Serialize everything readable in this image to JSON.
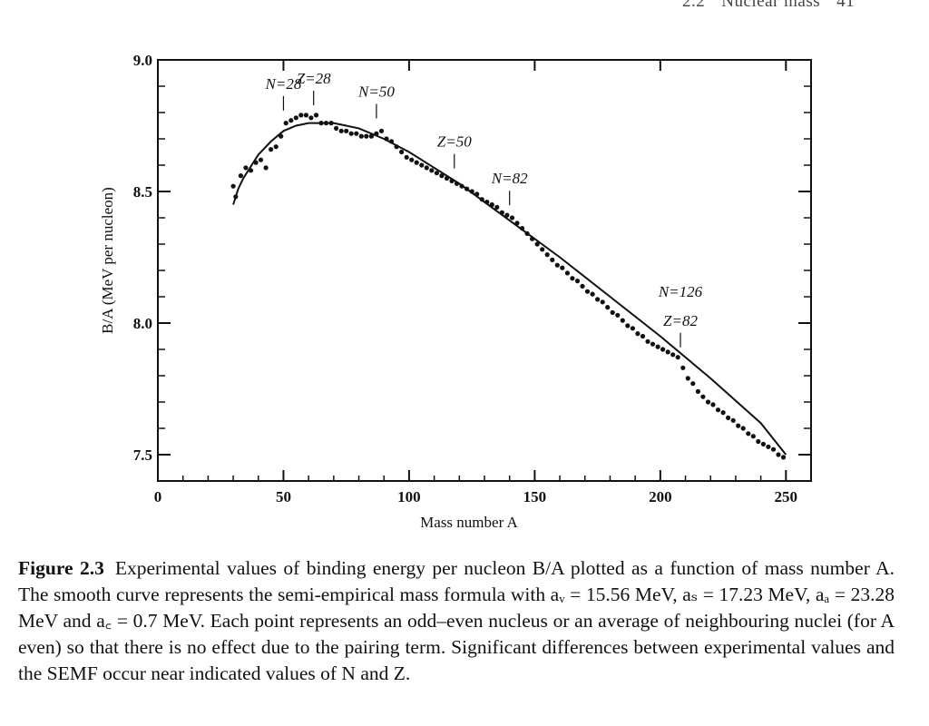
{
  "page_header": {
    "section": "2.2",
    "title": "Nuclear mass",
    "page_number": "41"
  },
  "chart_data": {
    "type": "scatter",
    "xlabel": "Mass number A",
    "ylabel": "B/A (MeV per nucleon)",
    "xlim": [
      0,
      260
    ],
    "ylim": [
      7.4,
      9.0
    ],
    "x_ticks": [
      0,
      50,
      100,
      150,
      200,
      250
    ],
    "x_tick_labels": [
      "0",
      "50",
      "100",
      "150",
      "200",
      "250"
    ],
    "y_ticks": [
      7.5,
      8.0,
      8.5,
      9.0
    ],
    "y_tick_labels": [
      "7.5",
      "8.0",
      "8.5",
      "9.0"
    ],
    "grid": false,
    "legend": "none",
    "series": [
      {
        "kind": "points",
        "x": [
          30,
          31,
          33,
          35,
          37,
          39,
          41,
          43,
          45,
          47,
          49,
          51,
          53,
          55,
          57,
          59,
          61,
          63,
          65,
          67,
          69,
          71,
          73,
          75,
          77,
          79,
          81,
          83,
          85,
          87,
          89,
          91,
          93,
          95,
          97,
          99,
          101,
          103,
          105,
          107,
          109,
          111,
          113,
          115,
          117,
          119,
          121,
          123,
          125,
          127,
          129,
          131,
          133,
          135,
          137,
          139,
          141,
          143,
          145,
          147,
          149,
          151,
          153,
          155,
          157,
          159,
          161,
          163,
          165,
          167,
          169,
          171,
          173,
          175,
          177,
          179,
          181,
          183,
          185,
          187,
          189,
          191,
          193,
          195,
          197,
          199,
          201,
          203,
          205,
          207,
          209,
          211,
          213,
          215,
          217,
          219,
          221,
          223,
          225,
          227,
          229,
          231,
          233,
          235,
          237,
          239,
          241,
          243,
          245,
          247,
          249
        ],
        "y": [
          8.52,
          8.48,
          8.56,
          8.59,
          8.58,
          8.61,
          8.62,
          8.59,
          8.66,
          8.67,
          8.71,
          8.76,
          8.77,
          8.78,
          8.79,
          8.79,
          8.78,
          8.79,
          8.76,
          8.76,
          8.76,
          8.74,
          8.73,
          8.73,
          8.72,
          8.72,
          8.71,
          8.71,
          8.71,
          8.72,
          8.73,
          8.7,
          8.69,
          8.67,
          8.65,
          8.63,
          8.62,
          8.61,
          8.6,
          8.59,
          8.58,
          8.57,
          8.56,
          8.55,
          8.54,
          8.53,
          8.52,
          8.51,
          8.5,
          8.49,
          8.47,
          8.46,
          8.45,
          8.44,
          8.42,
          8.41,
          8.4,
          8.38,
          8.36,
          8.34,
          8.32,
          8.3,
          8.28,
          8.26,
          8.24,
          8.22,
          8.21,
          8.19,
          8.17,
          8.16,
          8.14,
          8.12,
          8.11,
          8.09,
          8.08,
          8.06,
          8.04,
          8.03,
          8.01,
          7.99,
          7.98,
          7.96,
          7.95,
          7.93,
          7.92,
          7.91,
          7.9,
          7.89,
          7.88,
          7.87,
          7.83,
          7.79,
          7.77,
          7.74,
          7.72,
          7.7,
          7.69,
          7.67,
          7.66,
          7.64,
          7.63,
          7.61,
          7.6,
          7.58,
          7.57,
          7.55,
          7.54,
          7.53,
          7.52,
          7.5,
          7.49
        ]
      },
      {
        "kind": "curve",
        "x": [
          30,
          32,
          34,
          36,
          38,
          40,
          45,
          50,
          55,
          60,
          65,
          70,
          80,
          90,
          100,
          120,
          140,
          160,
          180,
          200,
          220,
          240,
          250
        ],
        "y": [
          8.45,
          8.51,
          8.55,
          8.58,
          8.61,
          8.64,
          8.69,
          8.73,
          8.75,
          8.76,
          8.76,
          8.76,
          8.74,
          8.7,
          8.65,
          8.53,
          8.39,
          8.25,
          8.1,
          7.95,
          7.79,
          7.62,
          7.5
        ]
      }
    ],
    "annotations": [
      {
        "label": "N=28",
        "x": 50,
        "y": 8.78
      },
      {
        "label": "Z=28",
        "x": 62,
        "y": 8.8
      },
      {
        "label": "N=50",
        "x": 87,
        "y": 8.75
      },
      {
        "label": "Z=50",
        "x": 118,
        "y": 8.56
      },
      {
        "label": "N=82",
        "x": 140,
        "y": 8.42
      },
      {
        "label": "N=126\nZ=82",
        "x": 208,
        "y": 7.88
      }
    ]
  },
  "caption": {
    "figure_label": "Figure 2.3",
    "text": "Experimental values of binding energy per nucleon B/A plotted as a function of mass number A. The smooth curve represents the semi-empirical mass formula with aᵥ = 15.56 MeV, aₛ = 17.23 MeV, aₐ = 23.28 MeV and a꜀ = 0.7 MeV. Each point represents an odd–even nucleus or an average of neighbouring nuclei (for A even) so that there is no effect due to the pairing term. Significant differences between experimental values and the SEMF occur near indicated values of N and Z."
  }
}
